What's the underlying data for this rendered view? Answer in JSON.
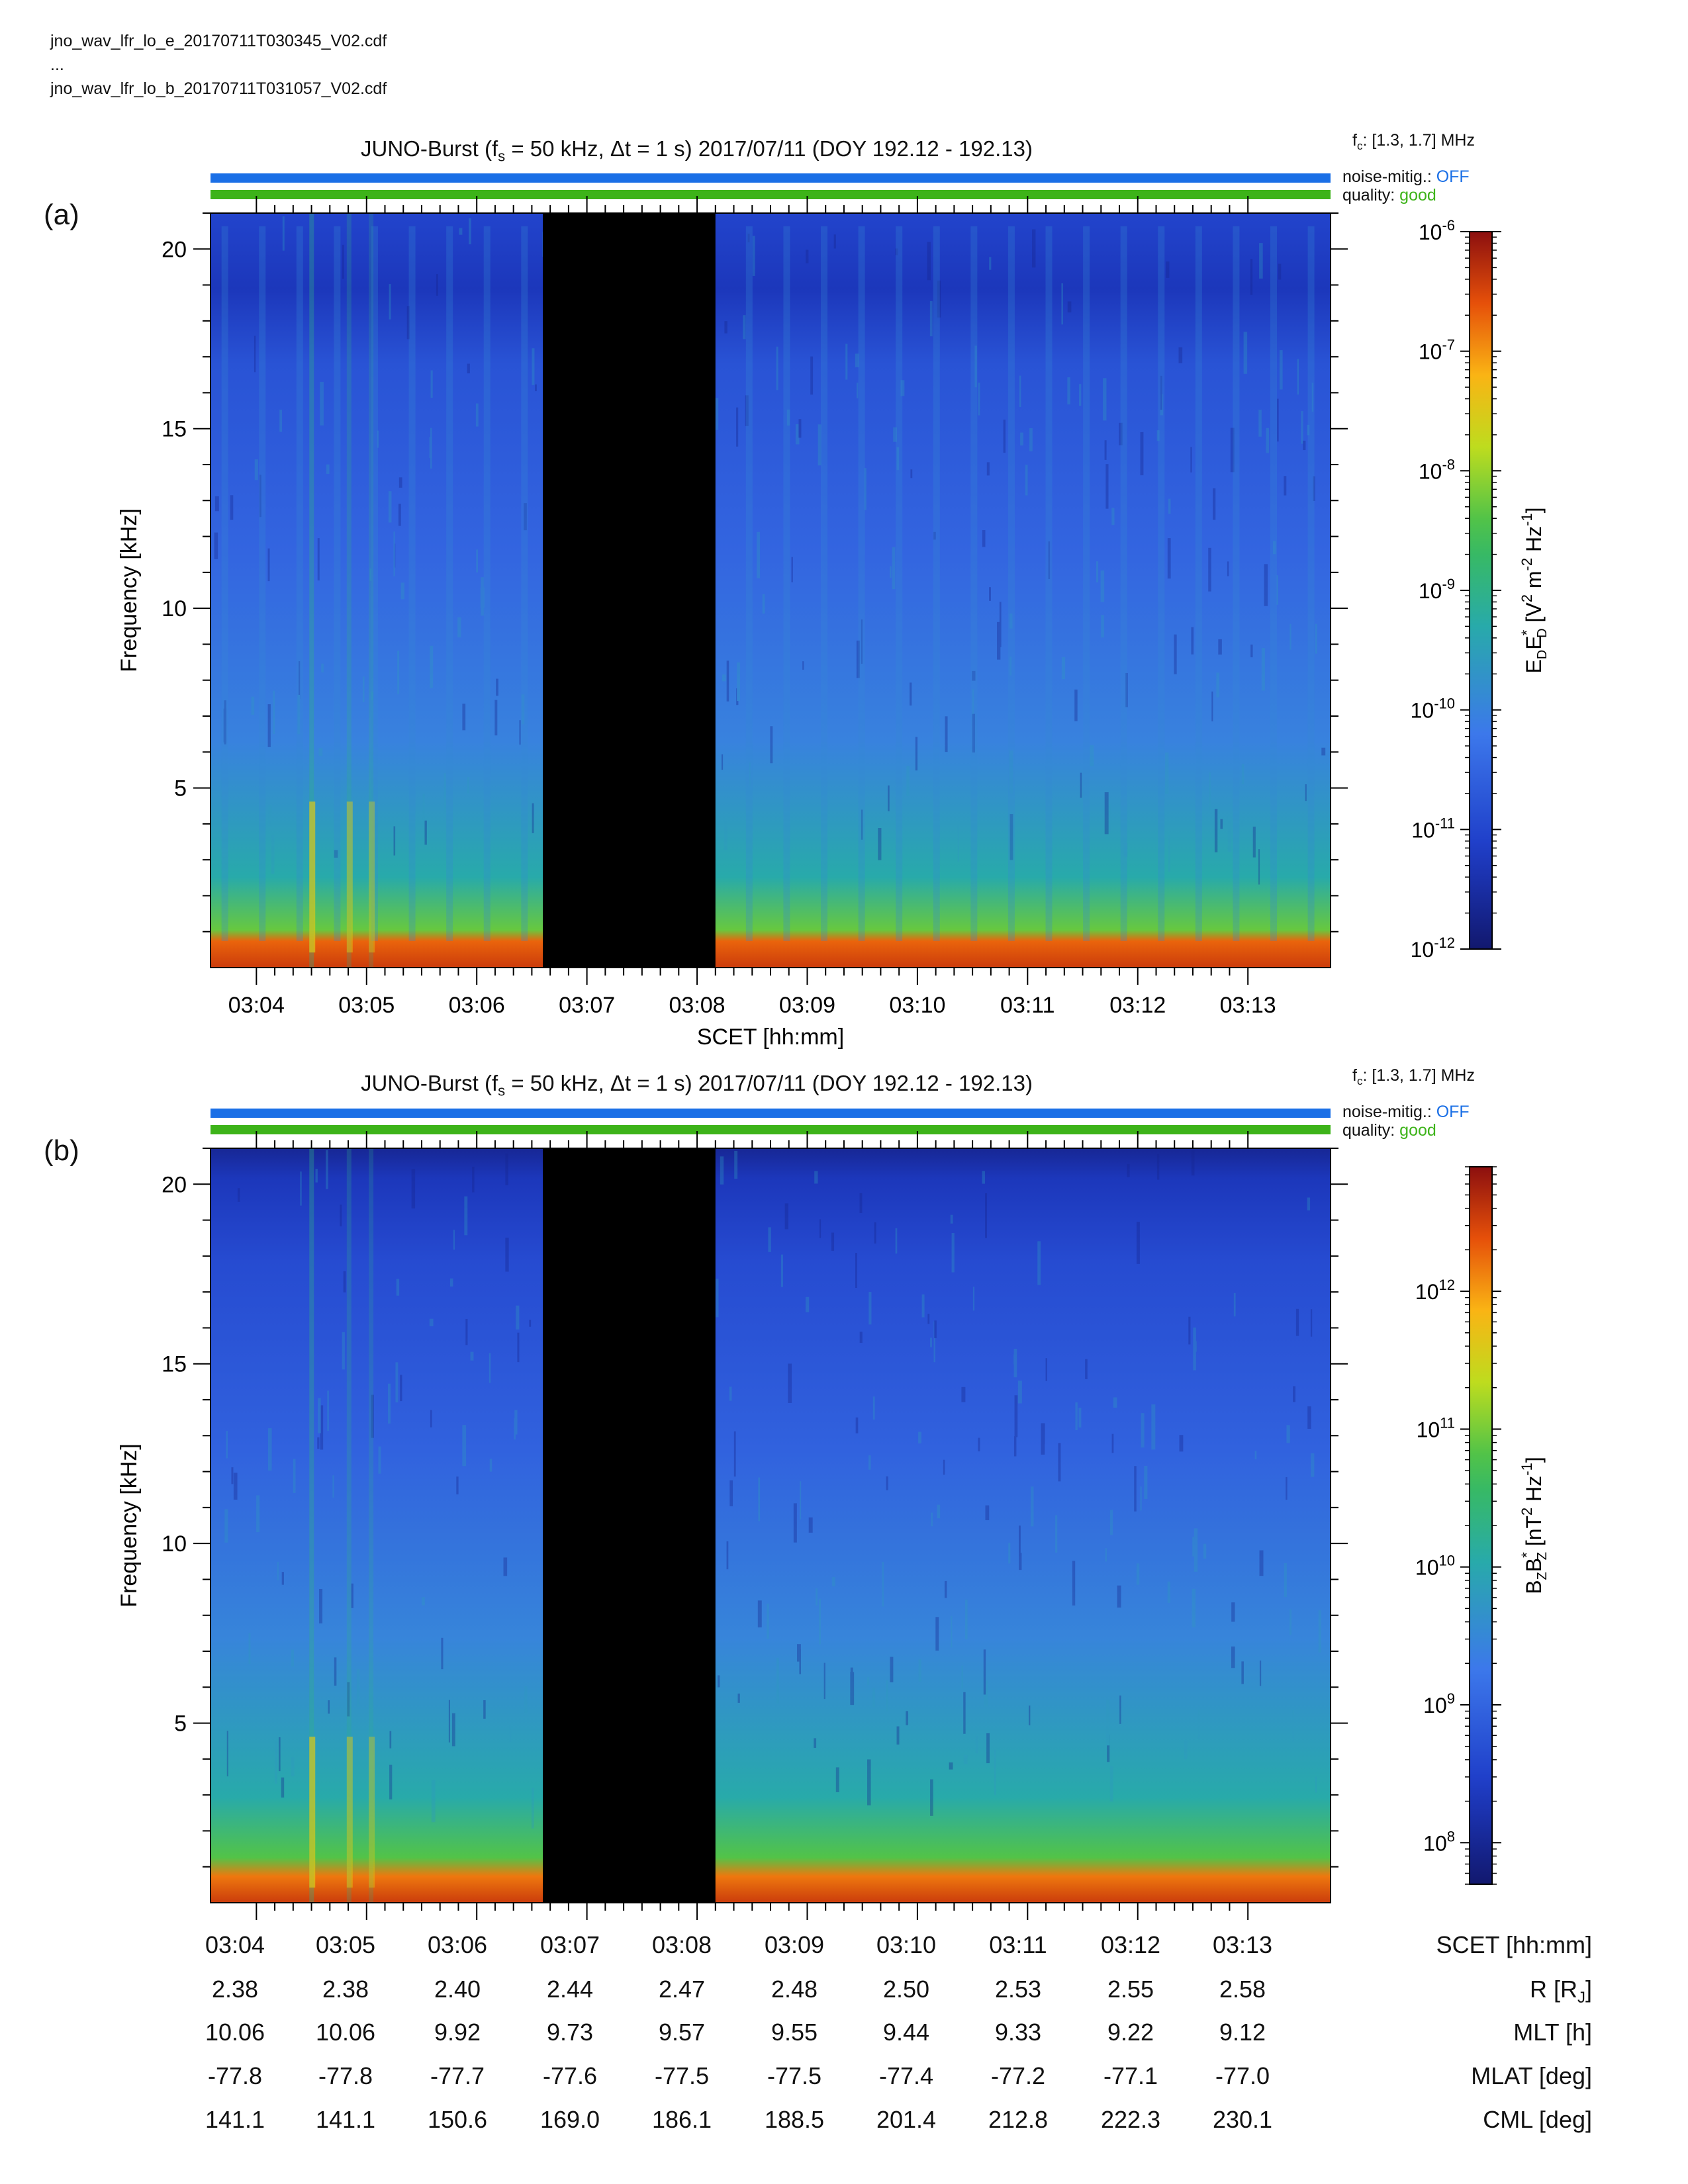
{
  "files": [
    "jno_wav_lfr_lo_e_20170711T030345_V02.cdf",
    "...",
    "jno_wav_lfr_lo_b_20170711T031057_V02.cdf"
  ],
  "panels": [
    {
      "letter": "(a)",
      "title": "JUNO-Burst (f_s = 50 kHz, Δt = 1 s)  2017/07/11 (DOY 192.12 - 192.13)",
      "fc": "[1.3, 1.7] MHz",
      "noise_label": "noise-mitig.:",
      "noise_value": "OFF",
      "quality_label": "quality:",
      "quality_value": "good",
      "colorbar_label": "E_D E_D* [V^2 m^-2 Hz^-1]",
      "colorbar_ticks": [
        "10^-6",
        "10^-7",
        "10^-8",
        "10^-9",
        "10^-10",
        "10^-11",
        "10^-12"
      ]
    },
    {
      "letter": "(b)",
      "title": "JUNO-Burst (f_s = 50 kHz, Δt = 1 s)  2017/07/11 (DOY 192.12 - 192.13)",
      "fc": "[1.3, 1.7] MHz",
      "noise_label": "noise-mitig.:",
      "noise_value": "OFF",
      "quality_label": "quality:",
      "quality_value": "good",
      "colorbar_label": "B_Z B_Z* [nT^2 Hz^-1]",
      "colorbar_ticks": [
        "10^12",
        "10^11",
        "10^10",
        "10^9",
        "10^8"
      ]
    }
  ],
  "colors": {
    "noise_bar": "#1a6fe6",
    "quality_bar": "#3db319",
    "noise_text": "#1a6fe6",
    "quality_text": "#3db319",
    "data_gap": "#000000"
  },
  "chart_data": [
    {
      "type": "heatmap",
      "title": "JUNO-Burst (fs = 50 kHz, Δt = 1 s) 2017/07/11 (DOY 192.12 - 192.13)",
      "xlabel": "SCET [hh:mm]",
      "ylabel": "Frequency [kHz]",
      "x_ticks": [
        "03:04",
        "03:05",
        "03:06",
        "03:07",
        "03:08",
        "03:09",
        "03:10",
        "03:11",
        "03:12",
        "03:13"
      ],
      "y_ticks": [
        5,
        10,
        15,
        20
      ],
      "ylim": [
        0,
        21
      ],
      "colorbar": {
        "scale": "log",
        "range": [
          1e-12,
          1e-06
        ],
        "unit": "V^2 m^-2 Hz^-1"
      },
      "data_gap": [
        "03:06.6",
        "03:08.2"
      ]
    },
    {
      "type": "heatmap",
      "title": "JUNO-Burst (fs = 50 kHz, Δt = 1 s) 2017/07/11 (DOY 192.12 - 192.13)",
      "xlabel": "",
      "ylabel": "Frequency [kHz]",
      "x_ticks": [
        "03:04",
        "03:05",
        "03:06",
        "03:07",
        "03:08",
        "03:09",
        "03:10",
        "03:11",
        "03:12",
        "03:13"
      ],
      "y_ticks": [
        5,
        10,
        15,
        20
      ],
      "ylim": [
        0,
        21
      ],
      "colorbar": {
        "scale": "log",
        "range": [
          50000000.0,
          8000000000000.0
        ],
        "unit": "nT^2 Hz^-1"
      },
      "data_gap": [
        "03:06.6",
        "03:08.2"
      ]
    }
  ],
  "ephemeris": {
    "rows": [
      {
        "label": "SCET [hh:mm]",
        "values": [
          "03:04",
          "03:05",
          "03:06",
          "03:07",
          "03:08",
          "03:09",
          "03:10",
          "03:11",
          "03:12",
          "03:13"
        ]
      },
      {
        "label": "R [R_J]",
        "values": [
          "2.38",
          "2.38",
          "2.40",
          "2.44",
          "2.47",
          "2.48",
          "2.50",
          "2.53",
          "2.55",
          "2.58"
        ]
      },
      {
        "label": "MLT [h]",
        "values": [
          "10.06",
          "10.06",
          "9.92",
          "9.73",
          "9.57",
          "9.55",
          "9.44",
          "9.33",
          "9.22",
          "9.12"
        ]
      },
      {
        "label": "MLAT [deg]",
        "values": [
          "-77.8",
          "-77.8",
          "-77.7",
          "-77.6",
          "-77.5",
          "-77.5",
          "-77.4",
          "-77.2",
          "-77.1",
          "-77.0"
        ]
      },
      {
        "label": "CML [deg]",
        "values": [
          "141.1",
          "141.1",
          "150.6",
          "169.0",
          "186.1",
          "188.5",
          "201.4",
          "212.8",
          "222.3",
          "230.1"
        ]
      }
    ]
  }
}
